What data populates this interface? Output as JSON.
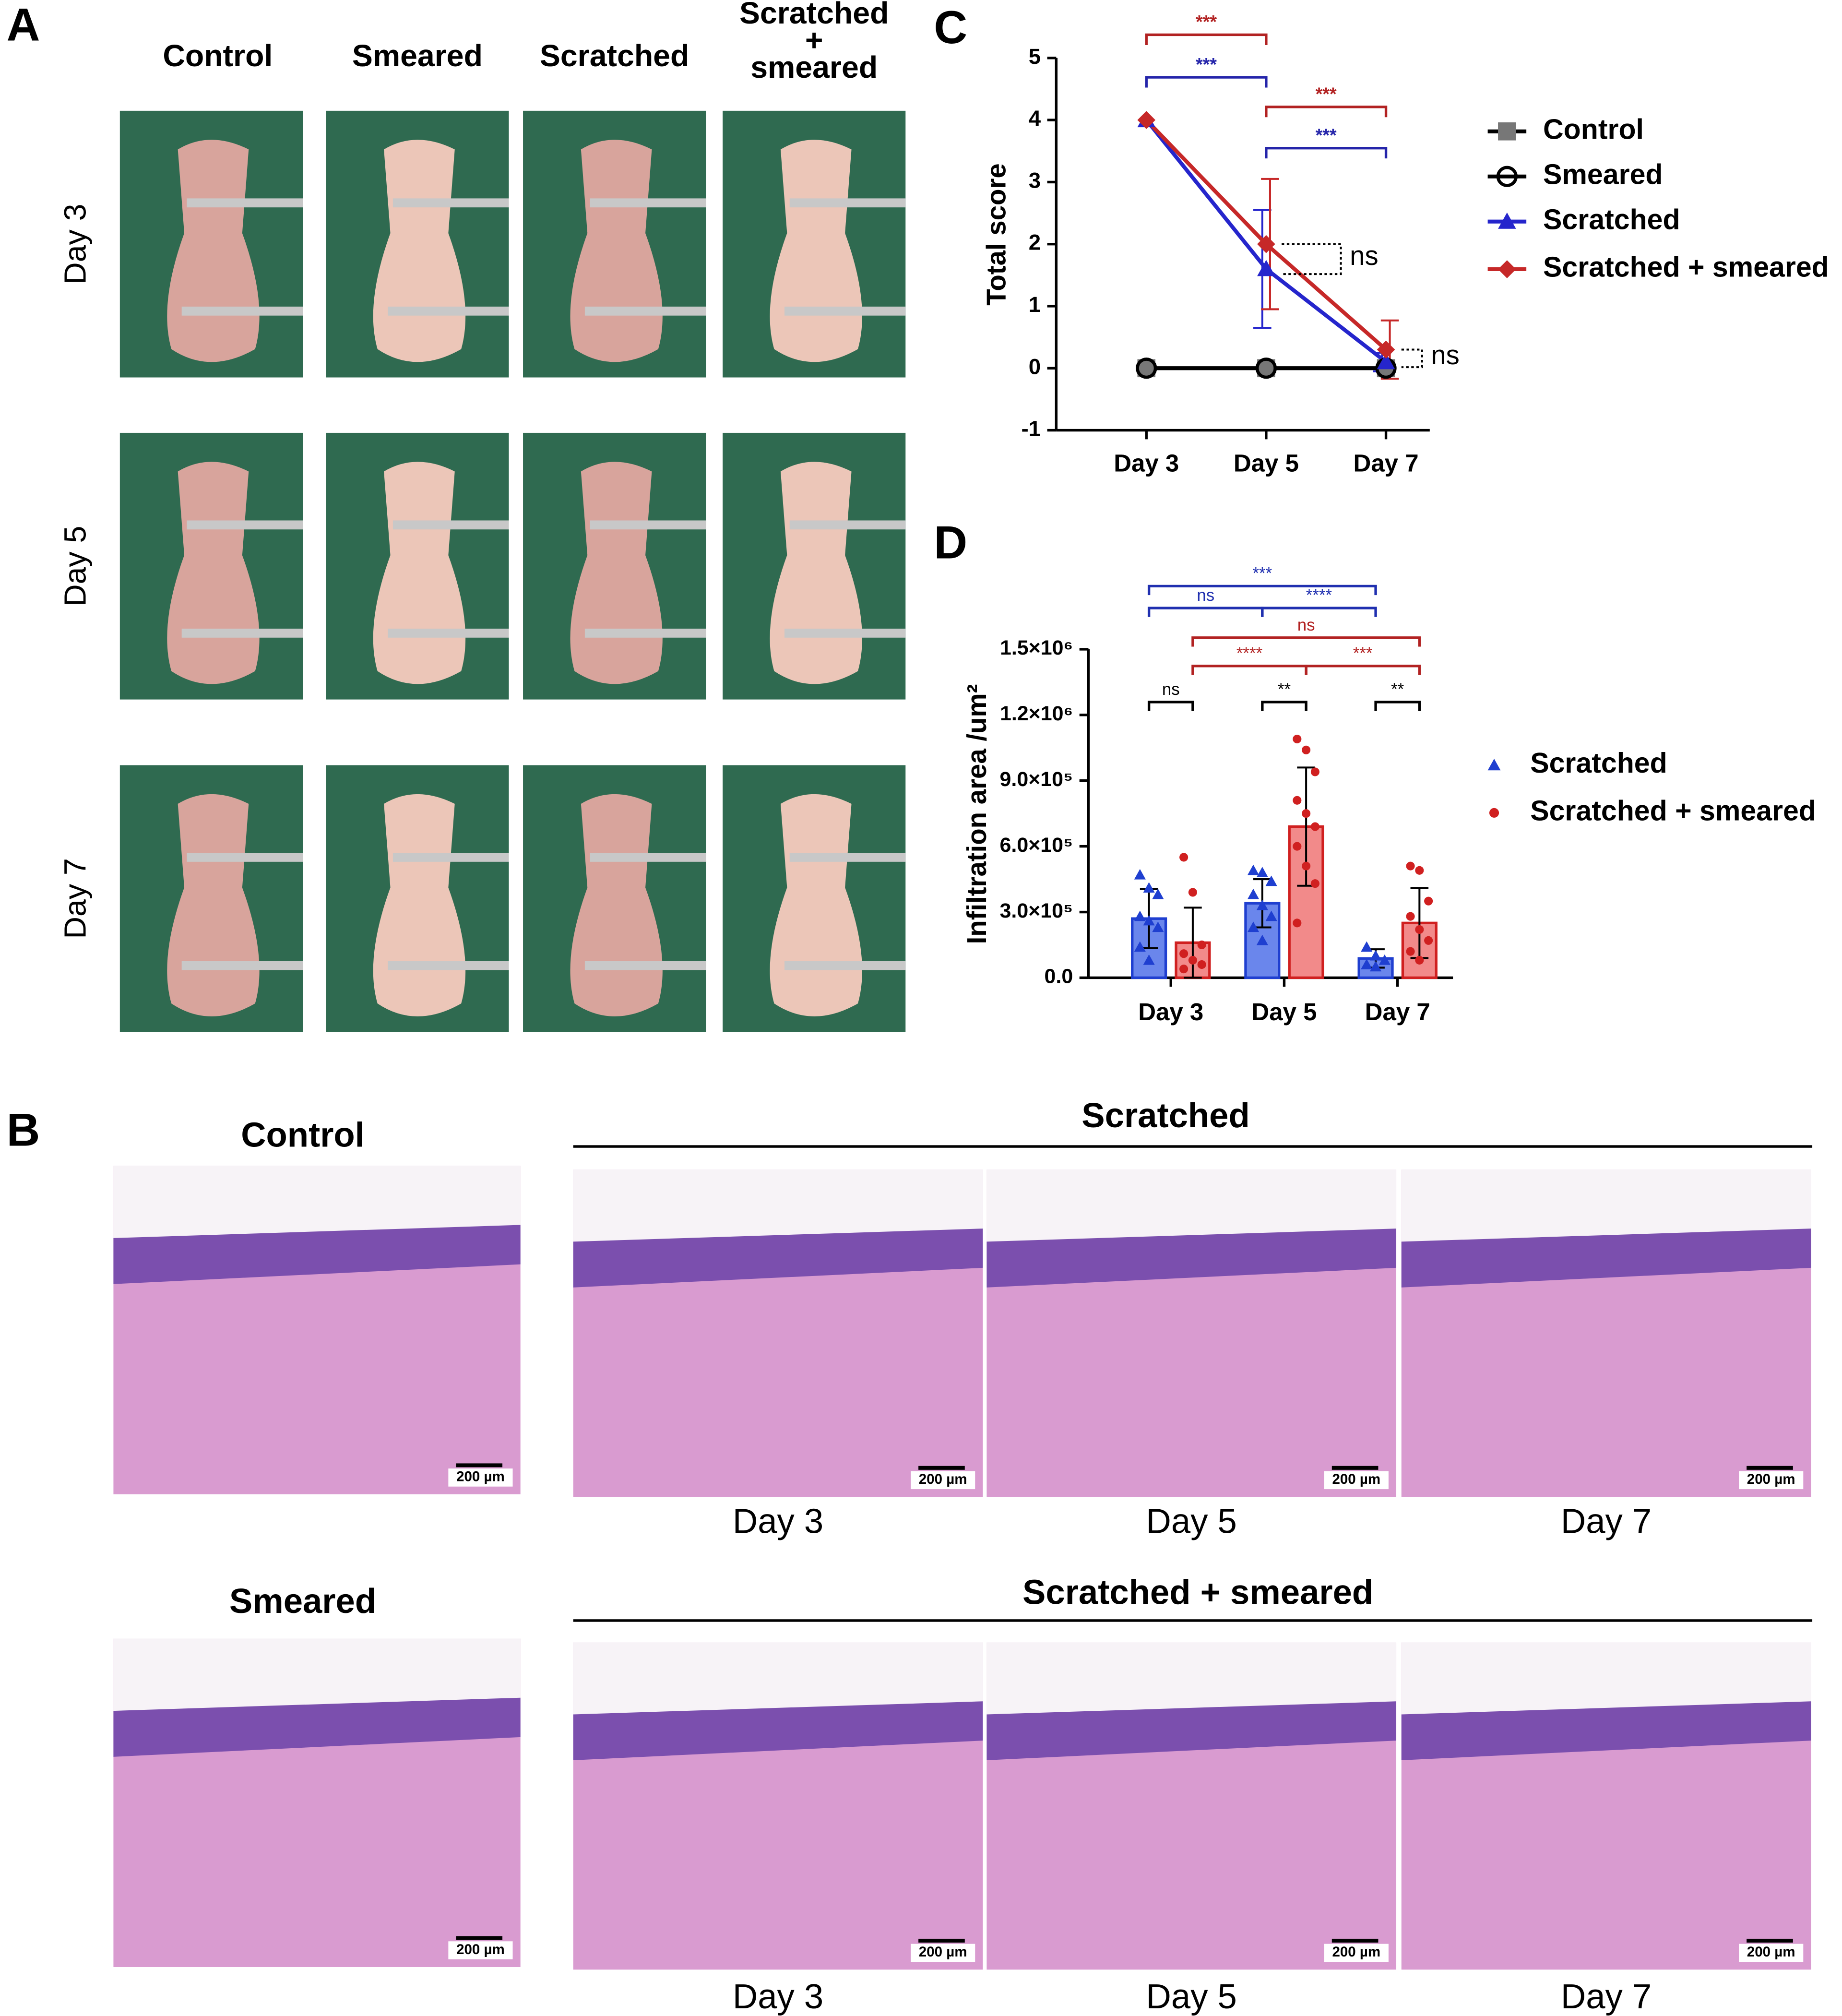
{
  "panel_labels": [
    "A",
    "B",
    "C",
    "D"
  ],
  "panel_a": {
    "column_headers": [
      [
        "Control"
      ],
      [
        "Smeared"
      ],
      [
        "Scratched"
      ],
      [
        "Scratched",
        "+",
        "smeared"
      ]
    ],
    "row_labels": [
      "Day 3",
      "Day 5",
      "Day 7"
    ]
  },
  "panel_b": {
    "single_groups": [
      "Control",
      "Smeared"
    ],
    "time_groups": [
      {
        "title": "Scratched",
        "days": [
          "Day 3",
          "Day 5",
          "Day 7"
        ]
      },
      {
        "title": "Scratched + smeared",
        "days": [
          "Day 3",
          "Day 5",
          "Day 7"
        ]
      }
    ],
    "scale_bar": "200 µm"
  },
  "chart_data": [
    {
      "type": "line",
      "ylabel": "Total score",
      "categories": [
        "Day 3",
        "Day 5",
        "Day 7"
      ],
      "ylim": [
        -1,
        5
      ],
      "yticks": [
        -1,
        0,
        1,
        2,
        3,
        4,
        5
      ],
      "series": [
        {
          "name": "Control",
          "color": "#777777",
          "marker": "square",
          "line": "#000000",
          "values": [
            0,
            0,
            0
          ]
        },
        {
          "name": "Smeared",
          "color": "#000000",
          "marker": "open-circle",
          "line": "#000000",
          "values": [
            0,
            0,
            0
          ]
        },
        {
          "name": "Scratched",
          "color": "#2525cc",
          "marker": "triangle",
          "line": "#2525cc",
          "values": [
            4,
            1.6,
            0.1
          ],
          "errors": [
            0,
            0.95,
            0.15
          ]
        },
        {
          "name": "Scratched + smeared",
          "color": "#c62828",
          "marker": "diamond",
          "line": "#c62828",
          "values": [
            4,
            2,
            0.3
          ],
          "errors": [
            0,
            1.05,
            0.47
          ]
        }
      ],
      "comparisons": [
        {
          "label": "***",
          "color": "#b22222",
          "series": 3,
          "from": 0,
          "to": 1
        },
        {
          "label": "***",
          "color": "#2525aa",
          "series": 2,
          "from": 0,
          "to": 1
        },
        {
          "label": "***",
          "color": "#b22222",
          "series": 3,
          "from": 1,
          "to": 2
        },
        {
          "label": "***",
          "color": "#2525aa",
          "series": 2,
          "from": 1,
          "to": 2
        }
      ],
      "between": [
        {
          "label": "ns",
          "category": 1
        },
        {
          "label": "ns",
          "category": 2
        }
      ]
    },
    {
      "type": "bar",
      "ylabel": "Infiltration area /um²",
      "categories": [
        "Day 3",
        "Day 5",
        "Day 7"
      ],
      "ylim": [
        0,
        1500000
      ],
      "yticks": [
        {
          "value": 0,
          "label": "0.0"
        },
        {
          "value": 300000,
          "label": "3.0×10⁵"
        },
        {
          "value": 600000,
          "label": "6.0×10⁵"
        },
        {
          "value": 900000,
          "label": "9.0×10⁵"
        },
        {
          "value": 1200000,
          "label": "1.2×10⁶"
        },
        {
          "value": 1500000,
          "label": "1.5×10⁶"
        }
      ],
      "series": [
        {
          "name": "Scratched",
          "color": "#1f3fd0",
          "fill": "#6a86ec",
          "marker": "triangle",
          "values": [
            270000,
            340000,
            88000
          ],
          "errors": [
            135000,
            110000,
            42000
          ],
          "points": [
            [
              470000,
              410000,
              380000,
              280000,
              260000,
              230000,
              140000,
              80000
            ],
            [
              490000,
              480000,
              440000,
              380000,
              330000,
              280000,
              230000,
              170000
            ],
            [
              140000,
              100000,
              80000,
              60000,
              50000
            ]
          ]
        },
        {
          "name": "Scratched + smeared",
          "color": "#d02020",
          "fill": "#f28a8a",
          "marker": "circle",
          "values": [
            160000,
            690000,
            250000
          ],
          "errors": [
            160000,
            270000,
            160000
          ],
          "points": [
            [
              550000,
              390000,
              150000,
              110000,
              80000,
              60000,
              40000
            ],
            [
              1090000,
              1040000,
              940000,
              810000,
              750000,
              690000,
              600000,
              510000,
              430000,
              250000
            ],
            [
              510000,
              490000,
              350000,
              280000,
              220000,
              170000,
              120000,
              80000
            ]
          ]
        }
      ],
      "comparisons": [
        {
          "label": "***",
          "color": "#2030b0",
          "from": [
            0,
            0
          ],
          "to": [
            2,
            0
          ]
        },
        {
          "label": "ns",
          "color": "#2030b0",
          "from": [
            0,
            0
          ],
          "to": [
            1,
            0
          ]
        },
        {
          "label": "****",
          "color": "#2030b0",
          "from": [
            1,
            0
          ],
          "to": [
            2,
            0
          ]
        },
        {
          "label": "ns",
          "color": "#b22222",
          "from": [
            0,
            1
          ],
          "to": [
            2,
            1
          ]
        },
        {
          "label": "****",
          "color": "#b22222",
          "from": [
            0,
            1
          ],
          "to": [
            1,
            1
          ]
        },
        {
          "label": "***",
          "color": "#b22222",
          "from": [
            1,
            1
          ],
          "to": [
            2,
            1
          ]
        },
        {
          "label": "ns",
          "color": "#000000",
          "from": [
            0,
            0
          ],
          "to": [
            0,
            1
          ]
        },
        {
          "label": "**",
          "color": "#000000",
          "from": [
            1,
            0
          ],
          "to": [
            1,
            1
          ]
        },
        {
          "label": "**",
          "color": "#000000",
          "from": [
            2,
            0
          ],
          "to": [
            2,
            1
          ]
        }
      ]
    }
  ]
}
